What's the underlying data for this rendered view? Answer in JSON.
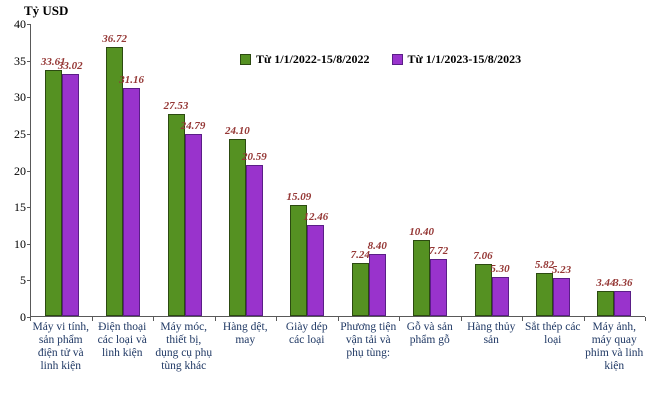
{
  "colors": {
    "data_label": "#953735",
    "x_label": "#1f3864",
    "axis": "#595959",
    "background": "#ffffff"
  },
  "chart_data": {
    "type": "bar",
    "title": "",
    "y_axis_title": "Tỷ USD",
    "xlabel": "",
    "ylabel": "Tỷ USD",
    "ylim": [
      0,
      40
    ],
    "ytick_step": 5,
    "grid": false,
    "legend_position": "top-center",
    "categories": [
      "Máy vi tính, sản phẩm điện tử và linh kiện",
      "Điện thoại các loại và linh kiện",
      "Máy móc, thiết bị, dụng cụ phụ tùng khác",
      "Hàng dệt, may",
      "Giày dép các loại",
      "Phương tiện vận tải và phụ tùng:",
      "Gỗ và sản phẩm gỗ",
      "Hàng thủy sản",
      "Sắt thép các loại",
      "Máy ảnh, máy quay phim và linh kiện"
    ],
    "series": [
      {
        "name": "Từ 1/1/2022-15/8/2022",
        "color": "#559122",
        "border_color": "#2c4a11",
        "values": [
          33.61,
          36.72,
          27.53,
          24.1,
          15.09,
          7.24,
          10.4,
          7.06,
          5.82,
          3.44
        ]
      },
      {
        "name": "Từ 1/1/2023-15/8/2023",
        "color": "#9933cc",
        "border_color": "#5a1e87",
        "values": [
          33.02,
          31.16,
          24.79,
          20.59,
          12.46,
          8.4,
          7.72,
          5.3,
          5.23,
          3.36
        ]
      }
    ]
  }
}
